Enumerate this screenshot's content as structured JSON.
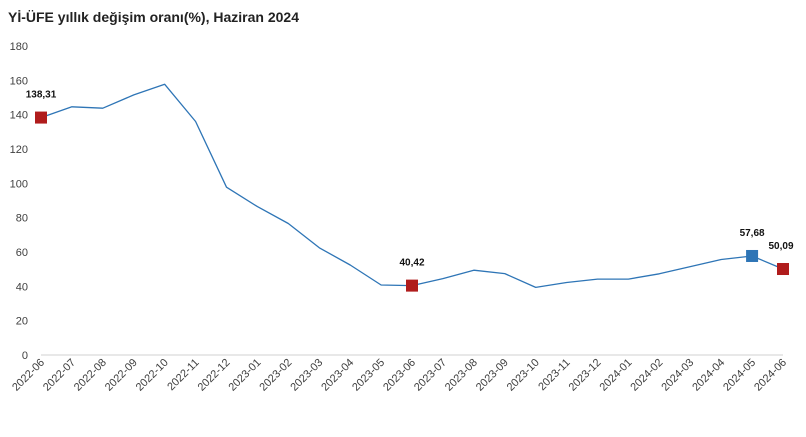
{
  "chart_data": {
    "type": "line",
    "title": "Yİ-ÜFE yıllık değişim oranı(%), Haziran 2024",
    "xlabel": "",
    "ylabel": "",
    "ylim": [
      0,
      180
    ],
    "yticks": [
      0,
      20,
      40,
      60,
      80,
      100,
      120,
      140,
      160,
      180
    ],
    "grid": false,
    "legend": "none",
    "categories": [
      "2022-06",
      "2022-07",
      "2022-08",
      "2022-09",
      "2022-10",
      "2022-11",
      "2022-12",
      "2023-01",
      "2023-02",
      "2023-03",
      "2023-04",
      "2023-05",
      "2023-06",
      "2023-07",
      "2023-08",
      "2023-09",
      "2023-10",
      "2023-11",
      "2023-12",
      "2024-01",
      "2024-02",
      "2024-03",
      "2024-04",
      "2024-05",
      "2024-06"
    ],
    "series": [
      {
        "values": [
          138.31,
          144.61,
          143.75,
          151.5,
          157.69,
          136.02,
          97.72,
          86.46,
          76.61,
          62.45,
          52.44,
          40.76,
          40.42,
          44.5,
          49.41,
          47.44,
          39.35,
          42.25,
          44.22,
          44.2,
          47.29,
          51.47,
          55.66,
          57.68,
          50.09
        ],
        "color": "#2e75b6"
      }
    ],
    "markers": [
      {
        "category": "2022-06",
        "value": 138.31,
        "label": "138,31",
        "color": "#b01c1c"
      },
      {
        "category": "2023-06",
        "value": 40.42,
        "label": "40,42",
        "color": "#b01c1c"
      },
      {
        "category": "2024-05",
        "value": 57.68,
        "label": "57,68",
        "color": "#2e75b6"
      },
      {
        "category": "2024-06",
        "value": 50.09,
        "label": "50,09",
        "color": "#b01c1c"
      }
    ]
  }
}
